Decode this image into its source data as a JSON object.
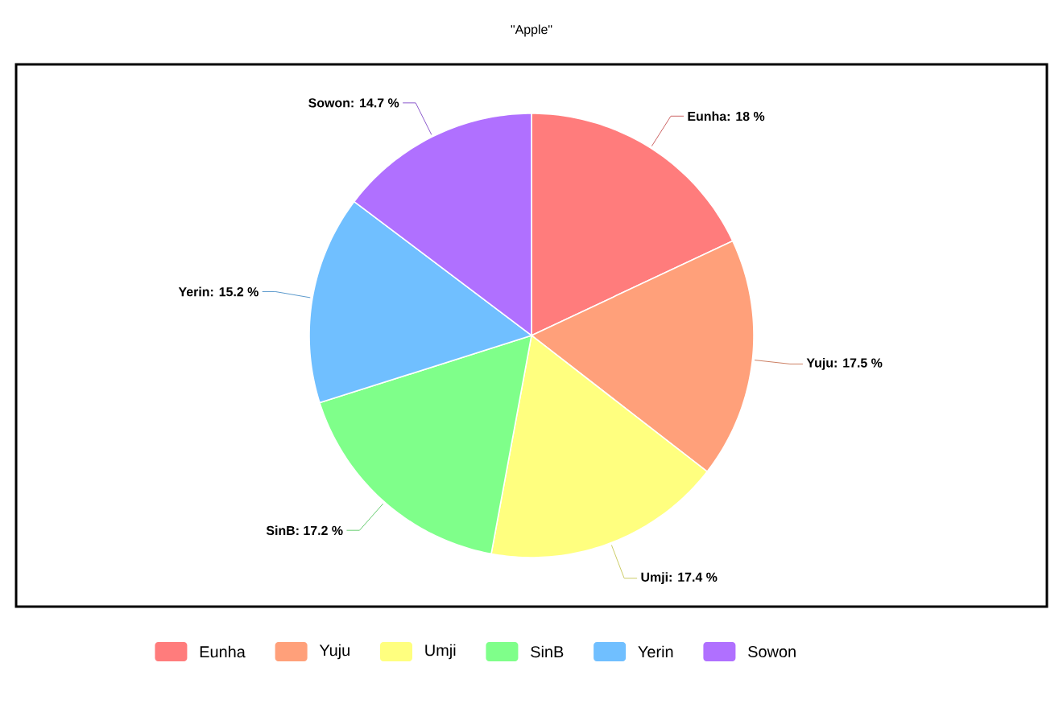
{
  "chart_data": {
    "type": "pie",
    "title": "\"Apple\"",
    "categories": [
      "Eunha",
      "Yuju",
      "Umji",
      "SinB",
      "Yerin",
      "Sowon"
    ],
    "values": [
      18,
      17.5,
      17.4,
      17.2,
      15.2,
      14.7
    ],
    "value_labels": [
      ": 18 %",
      ": 17.5 %",
      ": 17.4 %",
      ": 17.2 %",
      ": 15.2 %",
      ": 14.7 %"
    ],
    "colors": [
      "#ff7c7c",
      "#ffa07a",
      "#ffff7f",
      "#7fff8a",
      "#70bfff",
      "#b070ff"
    ],
    "legend": "bottom"
  }
}
